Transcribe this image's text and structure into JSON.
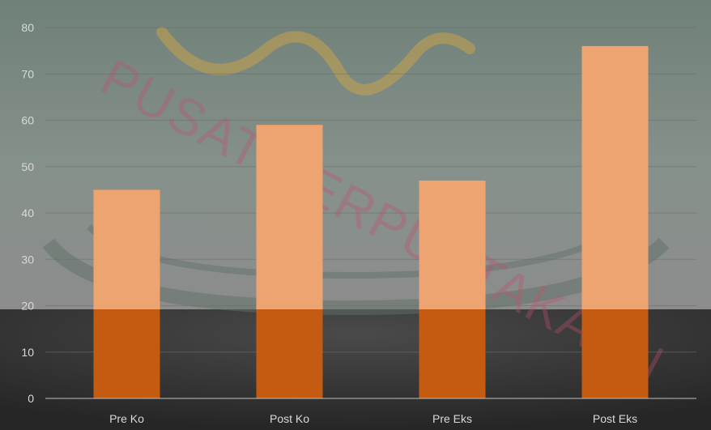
{
  "chart_data": {
    "type": "bar",
    "categories": [
      "Pre Ko",
      "Post Ko",
      "Pre Eks",
      "Post Eks"
    ],
    "values": [
      45,
      59,
      47,
      76
    ],
    "title": "",
    "xlabel": "",
    "ylabel": "",
    "ylim": [
      0,
      80
    ],
    "yticks": [
      0,
      10,
      20,
      30,
      40,
      50,
      60,
      70,
      80
    ],
    "grid": true,
    "legend": "none",
    "colors": {
      "bar": "#c55a11",
      "bar_overlay": "#f4b183",
      "background_top": "#7f8f86",
      "background_bottom": "#3a3a3a",
      "gridline": "#6e6e6e",
      "text": "#d9d9d9"
    }
  },
  "watermark": {
    "text": "PUSAT PERPUSTAKAAN"
  }
}
